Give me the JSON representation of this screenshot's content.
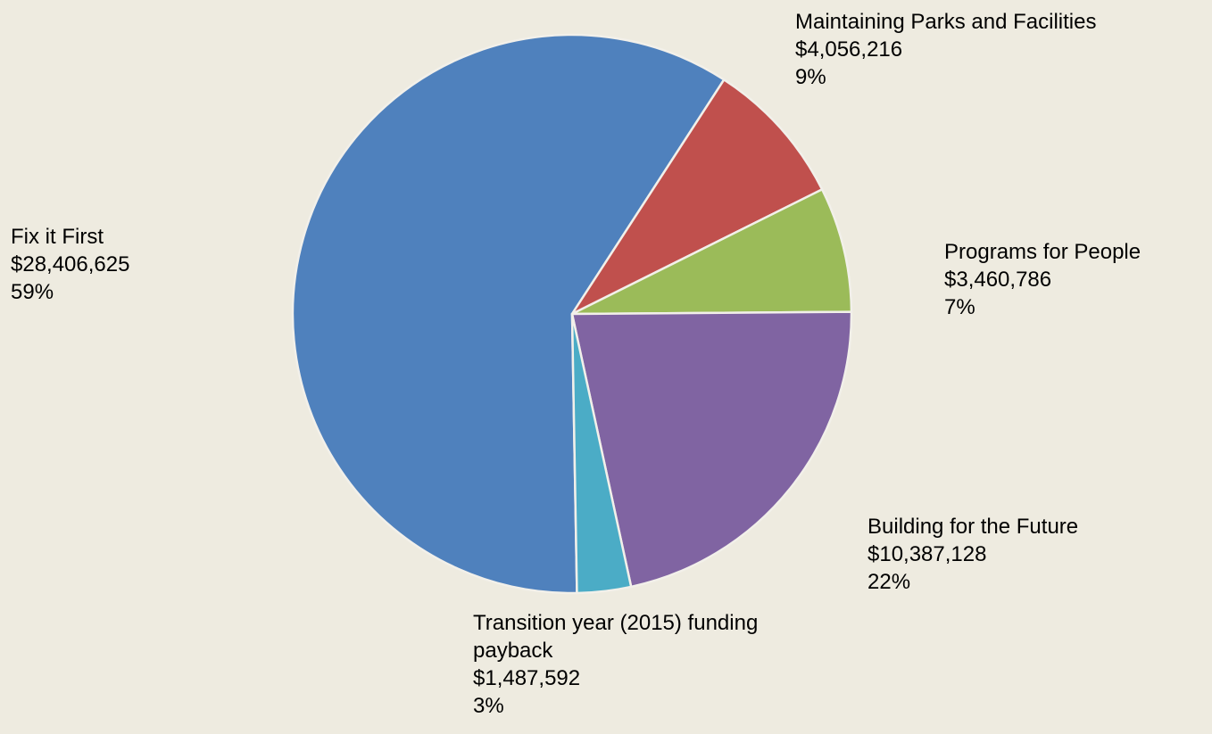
{
  "chart_data": {
    "type": "pie",
    "categories": [
      "Fix it First",
      "Maintaining Parks and Facilities",
      "Programs for People",
      "Building for the Future",
      "Transition year (2015) funding payback"
    ],
    "values": [
      28406625,
      4056216,
      3460786,
      10387128,
      1487592
    ],
    "value_labels": [
      "$28,406,625",
      "$4,056,216",
      "$3,460,786",
      "$10,387,128",
      "$1,487,592"
    ],
    "percents": [
      59,
      9,
      7,
      22,
      3
    ],
    "percent_labels": [
      "59%",
      "9%",
      "7%",
      "22%",
      "3%"
    ],
    "colors": [
      "#4f81bd",
      "#c0504d",
      "#9bbb59",
      "#8064a2",
      "#4bacc6"
    ],
    "startangle": 179
  }
}
